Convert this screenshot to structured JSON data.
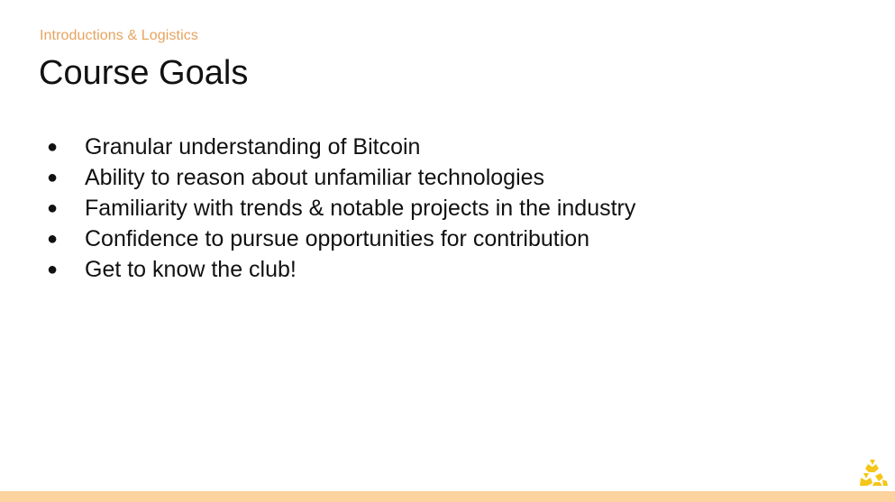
{
  "slide": {
    "section_label": "Introductions & Logistics",
    "title": "Course Goals",
    "goals": [
      "Granular understanding of Bitcoin",
      "Ability to reason about unfamiliar technologies",
      "Familiarity with trends & notable projects in the industry",
      "Confidence to pursue opportunities for contribution",
      "Get to know the club!"
    ],
    "bullet_glyph": "●"
  },
  "colors": {
    "accent": "#e6a35e",
    "logo": "#f5c518",
    "bottom_bar": "#fcd29f",
    "text": "#111111"
  },
  "icons": {
    "logo": "club-logo-icon"
  }
}
